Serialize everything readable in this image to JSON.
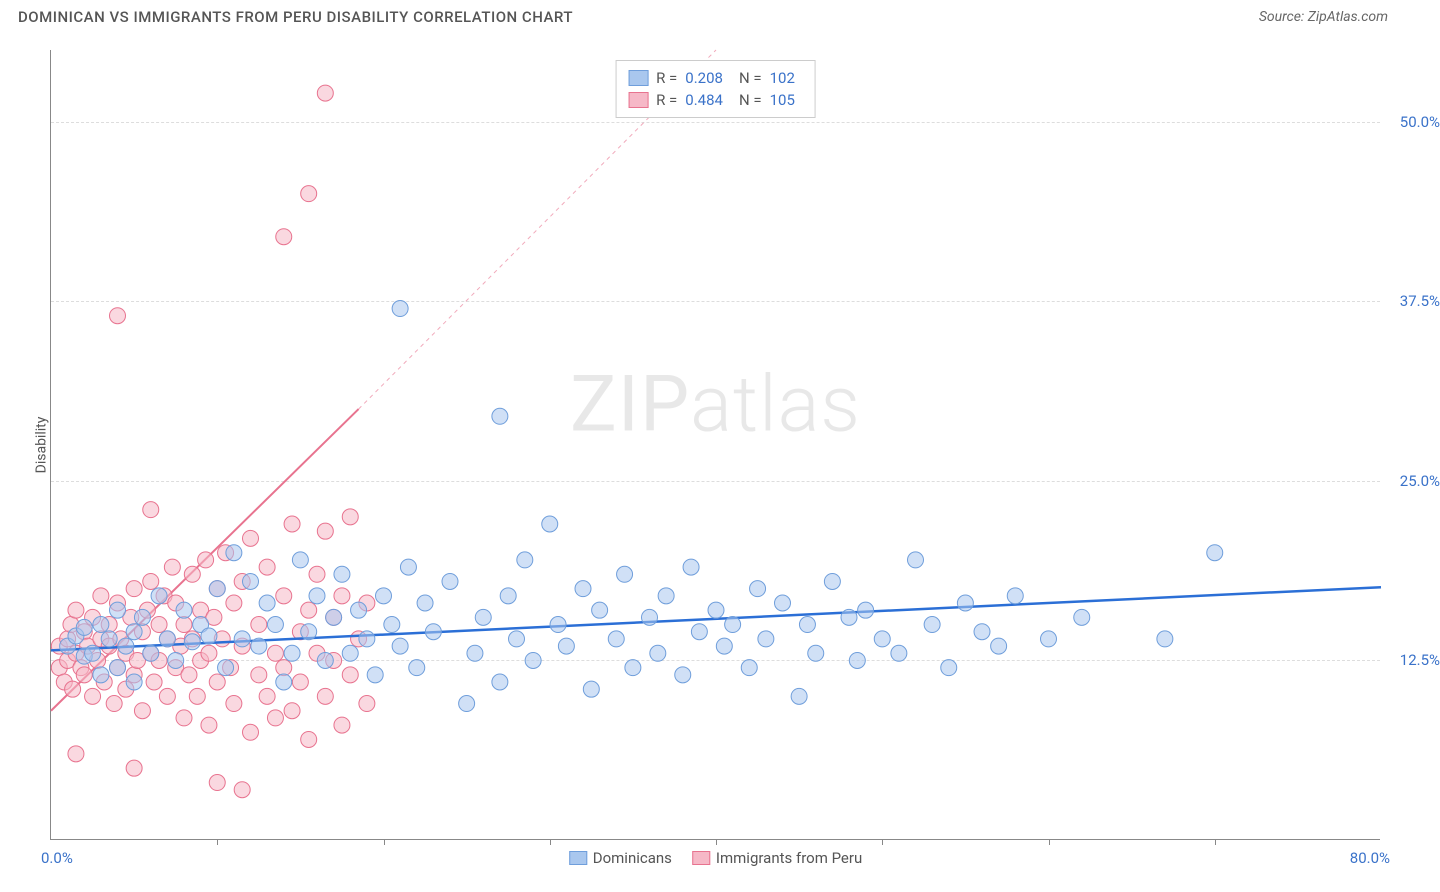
{
  "header": {
    "title": "DOMINICAN VS IMMIGRANTS FROM PERU DISABILITY CORRELATION CHART",
    "source": "Source: ZipAtlas.com"
  },
  "watermark": {
    "zip": "ZIP",
    "atlas": "atlas"
  },
  "chart": {
    "type": "scatter",
    "xlim": [
      0,
      80
    ],
    "ylim": [
      0,
      55
    ],
    "y_ticks": [
      12.5,
      25.0,
      37.5,
      50.0
    ],
    "y_tick_labels": [
      "12.5%",
      "25.0%",
      "37.5%",
      "50.0%"
    ],
    "x_origin_label": "0.0%",
    "x_max_label": "80.0%",
    "x_tick_positions": [
      10,
      20,
      30,
      40,
      50,
      60,
      70
    ],
    "y_axis_title": "Disability",
    "background_color": "#ffffff",
    "grid_color": "#dddddd",
    "marker_radius": 8,
    "marker_opacity": 0.55,
    "series": [
      {
        "name": "Dominicans",
        "color_fill": "#a9c7ee",
        "color_stroke": "#6f9edb",
        "r_label": "R =",
        "r_value": "0.208",
        "n_label": "N =",
        "n_value": "102",
        "trend": {
          "color": "#2b6fd6",
          "width": 2.5,
          "x1": 0,
          "y1": 13.2,
          "x2": 80,
          "y2": 17.6,
          "dash_extend": false
        },
        "points": [
          [
            1,
            13.5
          ],
          [
            1.5,
            14.2
          ],
          [
            2,
            12.8
          ],
          [
            2,
            14.8
          ],
          [
            2.5,
            13
          ],
          [
            3,
            15
          ],
          [
            3,
            11.5
          ],
          [
            3.5,
            14
          ],
          [
            4,
            12
          ],
          [
            4,
            16
          ],
          [
            4.5,
            13.5
          ],
          [
            5,
            14.5
          ],
          [
            5,
            11
          ],
          [
            5.5,
            15.5
          ],
          [
            6,
            13
          ],
          [
            6.5,
            17
          ],
          [
            7,
            14
          ],
          [
            7.5,
            12.5
          ],
          [
            8,
            16
          ],
          [
            8.5,
            13.8
          ],
          [
            9,
            15
          ],
          [
            9.5,
            14.2
          ],
          [
            10,
            17.5
          ],
          [
            10.5,
            12
          ],
          [
            11,
            20
          ],
          [
            11.5,
            14
          ],
          [
            12,
            18
          ],
          [
            12.5,
            13.5
          ],
          [
            13,
            16.5
          ],
          [
            13.5,
            15
          ],
          [
            14,
            11
          ],
          [
            14.5,
            13
          ],
          [
            15,
            19.5
          ],
          [
            15.5,
            14.5
          ],
          [
            16,
            17
          ],
          [
            16.5,
            12.5
          ],
          [
            17,
            15.5
          ],
          [
            17.5,
            18.5
          ],
          [
            18,
            13
          ],
          [
            18.5,
            16
          ],
          [
            19,
            14
          ],
          [
            19.5,
            11.5
          ],
          [
            20,
            17
          ],
          [
            20.5,
            15
          ],
          [
            21,
            13.5
          ],
          [
            21.5,
            19
          ],
          [
            22,
            12
          ],
          [
            22.5,
            16.5
          ],
          [
            23,
            14.5
          ],
          [
            24,
            18
          ],
          [
            25,
            9.5
          ],
          [
            25.5,
            13
          ],
          [
            26,
            15.5
          ],
          [
            27,
            11
          ],
          [
            27.5,
            17
          ],
          [
            28,
            14
          ],
          [
            28.5,
            19.5
          ],
          [
            29,
            12.5
          ],
          [
            30,
            22
          ],
          [
            30.5,
            15
          ],
          [
            31,
            13.5
          ],
          [
            32,
            17.5
          ],
          [
            32.5,
            10.5
          ],
          [
            33,
            16
          ],
          [
            34,
            14
          ],
          [
            34.5,
            18.5
          ],
          [
            35,
            12
          ],
          [
            36,
            15.5
          ],
          [
            36.5,
            13
          ],
          [
            37,
            17
          ],
          [
            38,
            11.5
          ],
          [
            38.5,
            19
          ],
          [
            39,
            14.5
          ],
          [
            40,
            16
          ],
          [
            40.5,
            13.5
          ],
          [
            41,
            15
          ],
          [
            42,
            12
          ],
          [
            42.5,
            17.5
          ],
          [
            43,
            14
          ],
          [
            44,
            16.5
          ],
          [
            45,
            10
          ],
          [
            45.5,
            15
          ],
          [
            46,
            13
          ],
          [
            47,
            18
          ],
          [
            48,
            15.5
          ],
          [
            48.5,
            12.5
          ],
          [
            49,
            16
          ],
          [
            50,
            14
          ],
          [
            51,
            13
          ],
          [
            52,
            19.5
          ],
          [
            53,
            15
          ],
          [
            54,
            12
          ],
          [
            55,
            16.5
          ],
          [
            56,
            14.5
          ],
          [
            57,
            13.5
          ],
          [
            58,
            17
          ],
          [
            60,
            14
          ],
          [
            62,
            15.5
          ],
          [
            67,
            14
          ],
          [
            70,
            20
          ],
          [
            21,
            37
          ],
          [
            27,
            29.5
          ]
        ]
      },
      {
        "name": "Immigrants from Peru",
        "color_fill": "#f6b8c7",
        "color_stroke": "#e8738f",
        "r_label": "R =",
        "r_value": "0.484",
        "n_label": "N =",
        "n_value": "105",
        "trend": {
          "color": "#e8738f",
          "width": 2,
          "x1": 0,
          "y1": 9,
          "x2": 18.5,
          "y2": 30,
          "dash_extend": true,
          "dash_x2": 40,
          "dash_y2": 55
        },
        "points": [
          [
            0.5,
            12
          ],
          [
            0.5,
            13.5
          ],
          [
            0.8,
            11
          ],
          [
            1,
            14
          ],
          [
            1,
            12.5
          ],
          [
            1.2,
            15
          ],
          [
            1.3,
            10.5
          ],
          [
            1.5,
            13
          ],
          [
            1.5,
            16
          ],
          [
            1.8,
            12
          ],
          [
            2,
            14.5
          ],
          [
            2,
            11.5
          ],
          [
            2.2,
            13.5
          ],
          [
            2.5,
            15.5
          ],
          [
            2.5,
            10
          ],
          [
            2.8,
            12.5
          ],
          [
            3,
            14
          ],
          [
            3,
            17
          ],
          [
            3.2,
            11
          ],
          [
            3.5,
            13.5
          ],
          [
            3.5,
            15
          ],
          [
            3.8,
            9.5
          ],
          [
            4,
            12
          ],
          [
            4,
            16.5
          ],
          [
            4.2,
            14
          ],
          [
            4.5,
            10.5
          ],
          [
            4.5,
            13
          ],
          [
            4.8,
            15.5
          ],
          [
            5,
            11.5
          ],
          [
            5,
            17.5
          ],
          [
            5.2,
            12.5
          ],
          [
            5.5,
            14.5
          ],
          [
            5.5,
            9
          ],
          [
            5.8,
            16
          ],
          [
            6,
            13
          ],
          [
            6,
            18
          ],
          [
            6.2,
            11
          ],
          [
            6.5,
            15
          ],
          [
            6.5,
            12.5
          ],
          [
            6.8,
            17
          ],
          [
            7,
            10
          ],
          [
            7,
            14
          ],
          [
            7.3,
            19
          ],
          [
            7.5,
            12
          ],
          [
            7.5,
            16.5
          ],
          [
            7.8,
            13.5
          ],
          [
            8,
            8.5
          ],
          [
            8,
            15
          ],
          [
            8.3,
            11.5
          ],
          [
            8.5,
            18.5
          ],
          [
            8.5,
            14
          ],
          [
            8.8,
            10
          ],
          [
            9,
            16
          ],
          [
            9,
            12.5
          ],
          [
            9.3,
            19.5
          ],
          [
            9.5,
            13
          ],
          [
            9.5,
            8
          ],
          [
            9.8,
            15.5
          ],
          [
            10,
            11
          ],
          [
            10,
            17.5
          ],
          [
            10.3,
            14
          ],
          [
            10.5,
            20
          ],
          [
            10.8,
            12
          ],
          [
            11,
            9.5
          ],
          [
            11,
            16.5
          ],
          [
            11.5,
            13.5
          ],
          [
            11.5,
            18
          ],
          [
            12,
            7.5
          ],
          [
            12,
            21
          ],
          [
            12.5,
            11.5
          ],
          [
            12.5,
            15
          ],
          [
            13,
            10
          ],
          [
            13,
            19
          ],
          [
            13.5,
            13
          ],
          [
            13.5,
            8.5
          ],
          [
            14,
            17
          ],
          [
            14,
            12
          ],
          [
            14.5,
            22
          ],
          [
            14.5,
            9
          ],
          [
            15,
            14.5
          ],
          [
            15,
            11
          ],
          [
            15.5,
            16
          ],
          [
            15.5,
            7
          ],
          [
            16,
            13
          ],
          [
            16,
            18.5
          ],
          [
            16.5,
            10
          ],
          [
            16.5,
            21.5
          ],
          [
            17,
            12.5
          ],
          [
            17,
            15.5
          ],
          [
            17.5,
            8
          ],
          [
            17.5,
            17
          ],
          [
            18,
            11.5
          ],
          [
            18,
            22.5
          ],
          [
            18.5,
            14
          ],
          [
            19,
            9.5
          ],
          [
            19,
            16.5
          ],
          [
            1.5,
            6
          ],
          [
            5,
            5
          ],
          [
            6,
            23
          ],
          [
            4,
            36.5
          ],
          [
            10,
            4
          ],
          [
            11.5,
            3.5
          ],
          [
            14,
            42
          ],
          [
            15.5,
            45
          ],
          [
            16.5,
            52
          ]
        ]
      }
    ]
  },
  "legend_bottom": [
    {
      "label": "Dominicans",
      "fill": "#a9c7ee",
      "stroke": "#6f9edb"
    },
    {
      "label": "Immigrants from Peru",
      "fill": "#f6b8c7",
      "stroke": "#e8738f"
    }
  ]
}
